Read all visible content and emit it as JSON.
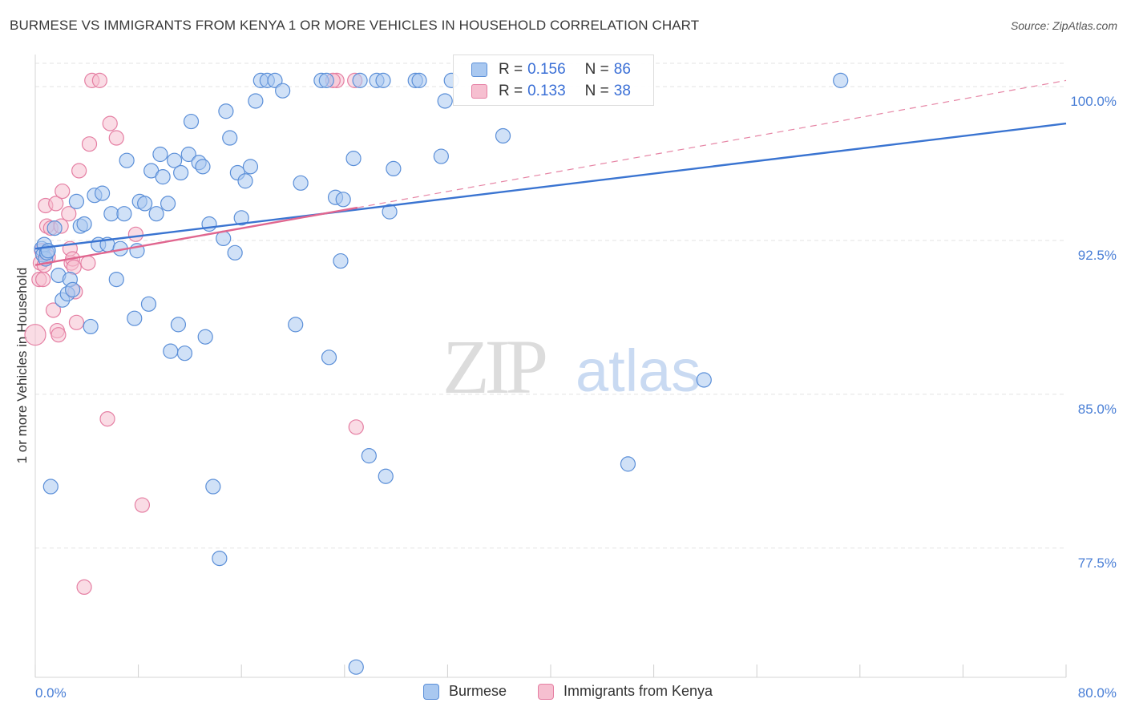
{
  "header": {
    "title": "BURMESE VS IMMIGRANTS FROM KENYA 1 OR MORE VEHICLES IN HOUSEHOLD CORRELATION CHART",
    "source": "Source: ZipAtlas.com"
  },
  "watermark": {
    "zip": "ZIP",
    "atlas": "atlas"
  },
  "colors": {
    "blue_fill": "#a9c8f0",
    "blue_stroke": "#5b8fd8",
    "blue_line": "#3a74d1",
    "pink_fill": "#f6bfd0",
    "pink_stroke": "#e57fa3",
    "pink_line": "#e0668f",
    "tick_blue": "#4a7fd6",
    "grid": "#e3e3e3"
  },
  "stats_legend": [
    {
      "r_label": "R =",
      "r_value": "0.156",
      "n_label": "N =",
      "n_value": "86",
      "color": "#a9c8f0",
      "border": "#5b8fd8"
    },
    {
      "r_label": "R =",
      "r_value": "0.133",
      "n_label": "N =",
      "n_value": "38",
      "color": "#f6bfd0",
      "border": "#e57fa3"
    }
  ],
  "bottom_legend": [
    {
      "label": "Burmese",
      "color": "#a9c8f0",
      "border": "#5b8fd8"
    },
    {
      "label": "Immigrants from Kenya",
      "color": "#f6bfd0",
      "border": "#e57fa3"
    }
  ],
  "chart_data": {
    "type": "scatter",
    "title": "BURMESE VS IMMIGRANTS FROM KENYA 1 OR MORE VEHICLES IN HOUSEHOLD CORRELATION CHART",
    "xlabel": "",
    "ylabel": "1 or more Vehicles in Household",
    "xlim": [
      0,
      80
    ],
    "ylim": [
      71.2,
      101.8
    ],
    "x_tick_labels": [
      "0.0%",
      "80.0%"
    ],
    "y_ticks": [
      77.5,
      85.0,
      92.5,
      100.0
    ],
    "y_tick_labels": [
      "77.5%",
      "85.0%",
      "92.5%",
      "100.0%"
    ],
    "grid": true,
    "series": [
      {
        "name": "Burmese",
        "r": 0.156,
        "n": 86,
        "trend": {
          "x": [
            0,
            80
          ],
          "y": [
            92.1,
            98.2
          ],
          "style": "solid"
        },
        "points": [
          {
            "x": 0.5,
            "y": 92.1
          },
          {
            "x": 0.6,
            "y": 91.8
          },
          {
            "x": 0.7,
            "y": 92.3
          },
          {
            "x": 0.8,
            "y": 91.6
          },
          {
            "x": 0.9,
            "y": 91.9
          },
          {
            "x": 1.0,
            "y": 92.0
          },
          {
            "x": 1.2,
            "y": 80.5
          },
          {
            "x": 1.5,
            "y": 93.1
          },
          {
            "x": 1.8,
            "y": 90.8
          },
          {
            "x": 2.1,
            "y": 89.6
          },
          {
            "x": 2.5,
            "y": 89.9
          },
          {
            "x": 2.7,
            "y": 90.6
          },
          {
            "x": 2.9,
            "y": 90.1
          },
          {
            "x": 3.2,
            "y": 94.4
          },
          {
            "x": 3.5,
            "y": 93.2
          },
          {
            "x": 3.8,
            "y": 93.3
          },
          {
            "x": 4.3,
            "y": 88.3
          },
          {
            "x": 4.6,
            "y": 94.7
          },
          {
            "x": 4.9,
            "y": 92.3
          },
          {
            "x": 5.2,
            "y": 94.8
          },
          {
            "x": 5.6,
            "y": 92.3
          },
          {
            "x": 5.9,
            "y": 93.8
          },
          {
            "x": 6.3,
            "y": 90.6
          },
          {
            "x": 6.6,
            "y": 92.1
          },
          {
            "x": 6.9,
            "y": 93.8
          },
          {
            "x": 7.1,
            "y": 96.4
          },
          {
            "x": 7.7,
            "y": 88.7
          },
          {
            "x": 7.9,
            "y": 92.0
          },
          {
            "x": 8.1,
            "y": 94.4
          },
          {
            "x": 8.5,
            "y": 94.3
          },
          {
            "x": 8.8,
            "y": 89.4
          },
          {
            "x": 9.0,
            "y": 95.9
          },
          {
            "x": 9.4,
            "y": 93.8
          },
          {
            "x": 9.7,
            "y": 96.7
          },
          {
            "x": 9.9,
            "y": 95.6
          },
          {
            "x": 10.3,
            "y": 94.3
          },
          {
            "x": 10.5,
            "y": 87.1
          },
          {
            "x": 10.8,
            "y": 96.4
          },
          {
            "x": 11.1,
            "y": 88.4
          },
          {
            "x": 11.3,
            "y": 95.8
          },
          {
            "x": 11.6,
            "y": 87.0
          },
          {
            "x": 11.9,
            "y": 96.7
          },
          {
            "x": 12.1,
            "y": 98.3
          },
          {
            "x": 12.7,
            "y": 96.3
          },
          {
            "x": 13.0,
            "y": 96.1
          },
          {
            "x": 13.2,
            "y": 87.8
          },
          {
            "x": 13.5,
            "y": 93.3
          },
          {
            "x": 13.8,
            "y": 80.5
          },
          {
            "x": 14.3,
            "y": 77.0
          },
          {
            "x": 14.6,
            "y": 92.6
          },
          {
            "x": 14.8,
            "y": 98.8
          },
          {
            "x": 15.1,
            "y": 97.5
          },
          {
            "x": 15.5,
            "y": 91.9
          },
          {
            "x": 15.7,
            "y": 95.8
          },
          {
            "x": 16.0,
            "y": 93.6
          },
          {
            "x": 16.3,
            "y": 95.4
          },
          {
            "x": 16.7,
            "y": 96.1
          },
          {
            "x": 17.1,
            "y": 99.3
          },
          {
            "x": 17.5,
            "y": 100.3
          },
          {
            "x": 18.0,
            "y": 100.3
          },
          {
            "x": 18.6,
            "y": 100.3
          },
          {
            "x": 19.2,
            "y": 99.8
          },
          {
            "x": 20.6,
            "y": 95.3
          },
          {
            "x": 20.2,
            "y": 88.4
          },
          {
            "x": 22.2,
            "y": 100.3
          },
          {
            "x": 22.6,
            "y": 100.3
          },
          {
            "x": 22.8,
            "y": 86.8
          },
          {
            "x": 23.3,
            "y": 94.6
          },
          {
            "x": 23.9,
            "y": 94.5
          },
          {
            "x": 23.7,
            "y": 91.5
          },
          {
            "x": 24.7,
            "y": 96.5
          },
          {
            "x": 25.2,
            "y": 100.3
          },
          {
            "x": 25.9,
            "y": 82.0
          },
          {
            "x": 26.5,
            "y": 100.3
          },
          {
            "x": 27.0,
            "y": 100.3
          },
          {
            "x": 27.2,
            "y": 81.0
          },
          {
            "x": 27.5,
            "y": 93.9
          },
          {
            "x": 27.8,
            "y": 96.0
          },
          {
            "x": 29.5,
            "y": 100.3
          },
          {
            "x": 29.8,
            "y": 100.3
          },
          {
            "x": 31.5,
            "y": 96.6
          },
          {
            "x": 31.8,
            "y": 99.3
          },
          {
            "x": 32.3,
            "y": 100.3
          },
          {
            "x": 36.3,
            "y": 97.6
          },
          {
            "x": 46.0,
            "y": 81.6
          },
          {
            "x": 51.9,
            "y": 85.7
          },
          {
            "x": 62.5,
            "y": 100.3
          },
          {
            "x": 24.9,
            "y": 71.7
          }
        ]
      },
      {
        "name": "Immigrants from Kenya",
        "r": 0.133,
        "n": 38,
        "trend": {
          "x": [
            0,
            25
          ],
          "y": [
            91.3,
            94.1
          ],
          "dashed_extension": {
            "x": [
              25,
              80
            ],
            "y": [
              94.1,
              100.3
            ]
          },
          "style": "solid"
        },
        "points": [
          {
            "x": 0.0,
            "y": 87.9
          },
          {
            "x": 0.3,
            "y": 90.6
          },
          {
            "x": 0.4,
            "y": 91.4
          },
          {
            "x": 0.5,
            "y": 92.0
          },
          {
            "x": 0.6,
            "y": 90.6
          },
          {
            "x": 0.7,
            "y": 91.3
          },
          {
            "x": 0.8,
            "y": 94.2
          },
          {
            "x": 0.9,
            "y": 93.2
          },
          {
            "x": 1.0,
            "y": 91.7
          },
          {
            "x": 1.2,
            "y": 93.1
          },
          {
            "x": 1.4,
            "y": 89.1
          },
          {
            "x": 1.6,
            "y": 94.3
          },
          {
            "x": 1.7,
            "y": 88.1
          },
          {
            "x": 1.8,
            "y": 87.9
          },
          {
            "x": 2.0,
            "y": 93.2
          },
          {
            "x": 2.1,
            "y": 94.9
          },
          {
            "x": 2.6,
            "y": 93.8
          },
          {
            "x": 2.7,
            "y": 92.1
          },
          {
            "x": 2.8,
            "y": 91.4
          },
          {
            "x": 2.9,
            "y": 91.6
          },
          {
            "x": 3.0,
            "y": 91.2
          },
          {
            "x": 3.1,
            "y": 90.0
          },
          {
            "x": 3.2,
            "y": 88.5
          },
          {
            "x": 3.4,
            "y": 95.9
          },
          {
            "x": 4.1,
            "y": 91.4
          },
          {
            "x": 4.2,
            "y": 97.2
          },
          {
            "x": 4.4,
            "y": 100.3
          },
          {
            "x": 5.0,
            "y": 100.3
          },
          {
            "x": 5.6,
            "y": 83.8
          },
          {
            "x": 5.8,
            "y": 98.2
          },
          {
            "x": 6.3,
            "y": 97.5
          },
          {
            "x": 7.8,
            "y": 92.8
          },
          {
            "x": 8.3,
            "y": 79.6
          },
          {
            "x": 3.8,
            "y": 75.6
          },
          {
            "x": 23.4,
            "y": 100.3
          },
          {
            "x": 24.8,
            "y": 100.3
          },
          {
            "x": 24.9,
            "y": 83.4
          },
          {
            "x": 23.1,
            "y": 100.3
          }
        ]
      }
    ]
  }
}
